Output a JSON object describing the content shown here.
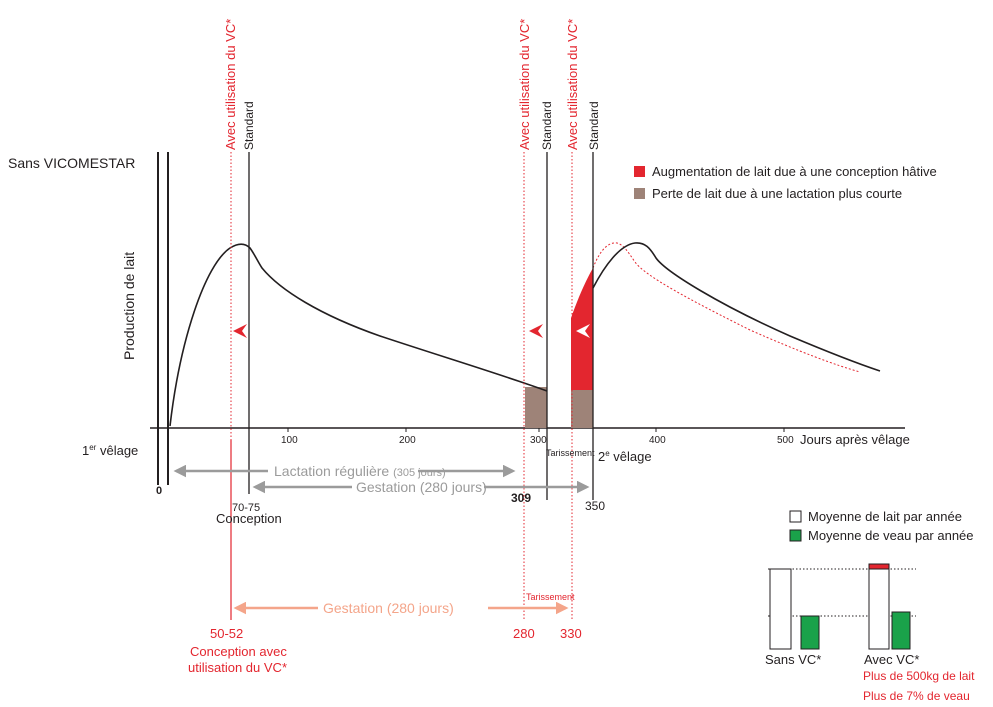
{
  "labels": {
    "sans_vicomestar": "Sans VICOMESTAR",
    "y_axis": "Production de lait",
    "x_axis": "Jours après vêlage",
    "first_calving": "1er vêlage",
    "first_calving_sup": "er",
    "second_calving": "2e vêlage",
    "second_calving_sup": "e",
    "vertical_standard": "Standard",
    "vertical_vc": "Avec utilisation du VC*",
    "tarissement": "Tarissement"
  },
  "ticks": [
    "100",
    "200",
    "300",
    "400",
    "500"
  ],
  "legend": {
    "increase": "Augmentation de lait due à une conception hâtive",
    "loss": "Perte de lait due à une lactation plus courte",
    "colors": {
      "increase": "#e3262f",
      "loss": "#9e8378"
    }
  },
  "arrows": {
    "lactation": "Lactation régulière",
    "lactation_days": "(305 jours)",
    "gestation_std": "Gestation (280 jours)",
    "gestation_vc": "Gestation (280 jours)"
  },
  "markers": {
    "zero": "0",
    "conception_days": "70-75",
    "conception": "Conception",
    "day_309": "309",
    "day_350": "350",
    "vc_conception_days": "50-52",
    "vc_conception_line1": "Conception avec",
    "vc_conception_line2": "utilisation du VC*",
    "day_280": "280",
    "day_330": "330",
    "tarissement_vc": "Tarissement"
  },
  "bar_legend": {
    "milk": "Moyenne de lait par année",
    "calf": "Moyenne de veau par année",
    "colors": {
      "milk": "#ffffff",
      "calf": "#1aa24a"
    }
  },
  "bars": {
    "sans_vc": "Sans VC*",
    "avec_vc": "Avec VC*",
    "note_milk": "Plus de 500kg de lait",
    "note_calf": "Plus de 7% de veau"
  }
}
